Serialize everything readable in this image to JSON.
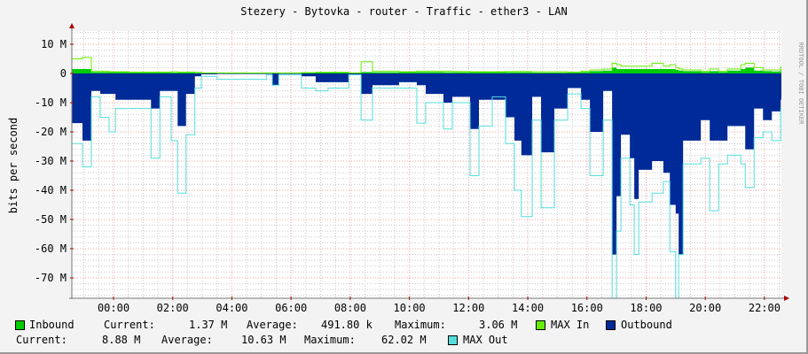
{
  "chart_data": {
    "type": "area",
    "title": "Stezery - Bytovka - router - Traffic - ether3 - LAN",
    "ylabel": "bits per second",
    "xlabel": "",
    "watermark": "RRDTOOL / TOBI OETIKER",
    "ylim": [
      -77,
      14.5
    ],
    "xlim": [
      "22:35",
      "22:35"
    ],
    "grid": true,
    "legend_placement": "bottom",
    "y_ticks": [
      {
        "v": 10,
        "label": "10 M"
      },
      {
        "v": 0,
        "label": "0"
      },
      {
        "v": -10,
        "label": "-10 M"
      },
      {
        "v": -20,
        "label": "-20 M"
      },
      {
        "v": -30,
        "label": "-30 M"
      },
      {
        "v": -40,
        "label": "-40 M"
      },
      {
        "v": -50,
        "label": "-50 M"
      },
      {
        "v": -60,
        "label": "-60 M"
      },
      {
        "v": -70,
        "label": "-70 M"
      }
    ],
    "x_ticks": [
      "00:00",
      "02:00",
      "04:00",
      "06:00",
      "08:00",
      "10:00",
      "12:00",
      "14:00",
      "16:00",
      "18:00",
      "20:00",
      "22:00"
    ],
    "units": "M",
    "colors": {
      "inbound": "#00cc00",
      "max_in": "#66ee00",
      "outbound": "#002a97",
      "max_out": "#55dddd",
      "major_grid": "#f0a0a0",
      "minor_grid": "#c8c8c8"
    },
    "columns": [
      "time",
      "inbound",
      "max_in",
      "outbound",
      "max_out"
    ],
    "rows": [
      [
        "22:34",
        1.5,
        5,
        -17,
        -24
      ],
      [
        "22:57",
        1.5,
        5.5,
        -23,
        -32
      ],
      [
        "23:15",
        0.5,
        0.8,
        -6,
        -8
      ],
      [
        "23:33",
        0.5,
        0.8,
        -7,
        -15
      ],
      [
        "23:51",
        0.4,
        0.6,
        -7,
        -20
      ],
      [
        "00:04",
        0.4,
        0.6,
        -9,
        -12
      ],
      [
        "00:31",
        0.3,
        0.5,
        -9,
        -12
      ],
      [
        "01:03",
        0.3,
        0.5,
        -9,
        -12
      ],
      [
        "01:16",
        0.3,
        0.5,
        -12,
        -29
      ],
      [
        "01:34",
        0.3,
        0.5,
        -6,
        -8
      ],
      [
        "01:57",
        0.3,
        0.6,
        -6,
        -23
      ],
      [
        "02:10",
        0.3,
        0.5,
        -18,
        -41
      ],
      [
        "02:27",
        0.3,
        0.5,
        -7,
        -21
      ],
      [
        "02:45",
        0.2,
        0.4,
        -1,
        -5
      ],
      [
        "02:58",
        0.1,
        0.2,
        -0.3,
        -1
      ],
      [
        "03:30",
        0.1,
        0.2,
        -0.2,
        -2
      ],
      [
        "05:10",
        0.1,
        0.2,
        -0.2,
        -0.5
      ],
      [
        "05:22",
        0.1,
        0.2,
        -4,
        -4
      ],
      [
        "05:35",
        0.1,
        0.2,
        -0.2,
        -0.5
      ],
      [
        "06:21",
        0.2,
        0.3,
        -1,
        -5
      ],
      [
        "06:50",
        0.3,
        0.4,
        -3,
        -6
      ],
      [
        "07:15",
        0.3,
        0.4,
        -3,
        -5
      ],
      [
        "07:57",
        0.1,
        0.2,
        -0.3,
        -0.5
      ],
      [
        "08:22",
        0.5,
        4,
        -7,
        -16
      ],
      [
        "08:45",
        0.4,
        0.8,
        -4,
        -5
      ],
      [
        "09:39",
        0.4,
        0.6,
        -3,
        -5
      ],
      [
        "10:15",
        0.5,
        0.8,
        -4,
        -17
      ],
      [
        "10:33",
        0.5,
        0.8,
        -7,
        -10
      ],
      [
        "11:09",
        0.4,
        0.8,
        -10,
        -19
      ],
      [
        "11:27",
        0.4,
        0.7,
        -8,
        -10
      ],
      [
        "11:45",
        0.4,
        0.7,
        -8,
        -10
      ],
      [
        "12:03",
        0.4,
        0.6,
        -19,
        -35
      ],
      [
        "12:21",
        0.4,
        0.6,
        -9,
        -18
      ],
      [
        "12:48",
        0.4,
        0.6,
        -9,
        -8
      ],
      [
        "13:15",
        0.4,
        0.7,
        -15,
        -24
      ],
      [
        "13:33",
        0.4,
        0.7,
        -23,
        -40
      ],
      [
        "13:47",
        0.4,
        0.7,
        -28,
        -49
      ],
      [
        "14:09",
        0.3,
        0.6,
        -8,
        -16
      ],
      [
        "14:27",
        0.3,
        0.6,
        -27,
        -46
      ],
      [
        "14:54",
        0.3,
        0.6,
        -12,
        -16
      ],
      [
        "15:21",
        0.3,
        0.5,
        -5,
        -7
      ],
      [
        "15:48",
        0.5,
        0.8,
        -9,
        -12
      ],
      [
        "16:06",
        0.8,
        1.2,
        -20,
        -35
      ],
      [
        "16:33",
        1.0,
        1.5,
        -6,
        -16
      ],
      [
        "16:51",
        2.0,
        3.5,
        -62,
        -77
      ],
      [
        "17:00",
        1.5,
        3.0,
        -42,
        -54
      ],
      [
        "17:09",
        1.5,
        2.5,
        -21,
        -29
      ],
      [
        "17:27",
        1.5,
        2.5,
        -29,
        -45
      ],
      [
        "17:36",
        1.5,
        2.5,
        -43,
        -62
      ],
      [
        "17:45",
        1.5,
        2.5,
        -33,
        -44
      ],
      [
        "18:12",
        1.5,
        3.5,
        -30,
        -41
      ],
      [
        "18:35",
        1.5,
        2.5,
        -34,
        -37
      ],
      [
        "18:48",
        1.5,
        3.0,
        -45,
        -61
      ],
      [
        "19:00",
        1.2,
        2.0,
        -48,
        -77
      ],
      [
        "19:06",
        1.0,
        1.5,
        -62,
        -62
      ],
      [
        "19:15",
        0.8,
        1.2,
        -23,
        -31
      ],
      [
        "19:51",
        0.5,
        0.8,
        -16,
        -29
      ],
      [
        "20:09",
        0.8,
        1.5,
        -23,
        -47
      ],
      [
        "20:27",
        0.5,
        0.8,
        -23,
        -31
      ],
      [
        "20:45",
        1.0,
        1.5,
        -18,
        -28
      ],
      [
        "21:12",
        1.5,
        3.0,
        -18,
        -31
      ],
      [
        "21:21",
        2.0,
        3.5,
        -26,
        -39
      ],
      [
        "21:39",
        1.0,
        2.0,
        -12,
        -22
      ],
      [
        "21:57",
        0.8,
        1.2,
        -16,
        -20
      ],
      [
        "22:15",
        0.7,
        1.2,
        -13,
        -23
      ],
      [
        "22:33",
        1.4,
        2.2,
        -9,
        -12
      ]
    ]
  },
  "legend": {
    "inbound": {
      "label": "Inbound",
      "current_label": "Current:",
      "current": "1.37 M",
      "average_label": "Average:",
      "average": "491.80 k",
      "maximum_label": "Maximum:",
      "maximum": "3.06 M"
    },
    "max_in": {
      "label": "MAX In"
    },
    "outbound": {
      "label": "Outbound",
      "current_label": "Current:",
      "current": "8.88 M",
      "average_label": "Average:",
      "average": "10.63 M",
      "maximum_label": "Maximum:",
      "maximum": "62.02 M"
    },
    "max_out": {
      "label": "MAX Out"
    }
  }
}
